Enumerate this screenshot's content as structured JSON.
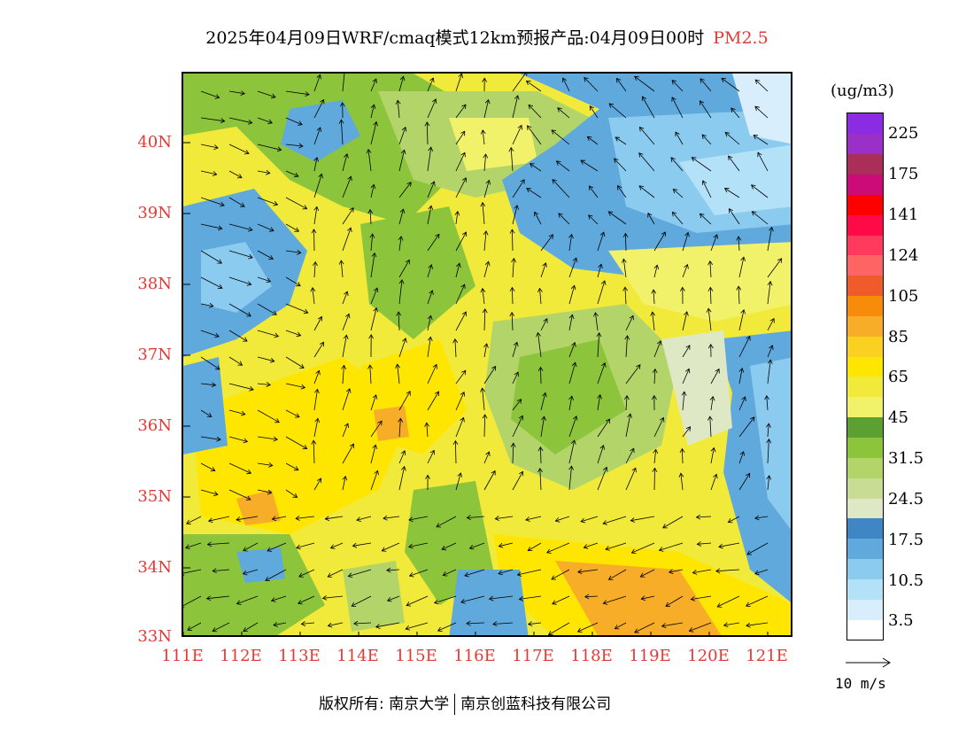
{
  "title": {
    "main": "2025年04月09日WRF/cmaq模式12km预报产品:04月09日00时",
    "pollutant": "PM2.5",
    "pollutant_color": "#e53935"
  },
  "axes": {
    "lat_labels": [
      "40N",
      "39N",
      "38N",
      "37N",
      "36N",
      "35N",
      "34N",
      "33N"
    ],
    "lon_labels": [
      "111E",
      "112E",
      "113E",
      "114E",
      "115E",
      "116E",
      "117E",
      "118E",
      "119E",
      "120E",
      "121E"
    ],
    "label_color": "#e53935"
  },
  "colorbar": {
    "unit": "(ug/m3)",
    "colors": [
      "#ffffff",
      "#d8eefc",
      "#b3e1f8",
      "#8ccbf0",
      "#5fa9dc",
      "#3f86c4",
      "#dfe8c4",
      "#c8dc94",
      "#b2d468",
      "#8cc43c",
      "#5ba030",
      "#f2f26a",
      "#f2ea3a",
      "#ffe600",
      "#fad021",
      "#f7ad28",
      "#f68c0a",
      "#ef5b2a",
      "#ff6464",
      "#ff3a5c",
      "#ff0a46",
      "#ff0000",
      "#cc0a78",
      "#aa2d5a",
      "#9b30c8",
      "#8b2be2"
    ],
    "ticks": [
      "225",
      "175",
      "141",
      "124",
      "105",
      "85",
      "65",
      "45",
      "31.5",
      "24.5",
      "17.5",
      "10.5",
      "3.5"
    ]
  },
  "wind_reference": {
    "label": "10 m/s"
  },
  "footer": {
    "left": "版权所有: 南京大学",
    "right": "南京创蓝科技有限公司"
  }
}
